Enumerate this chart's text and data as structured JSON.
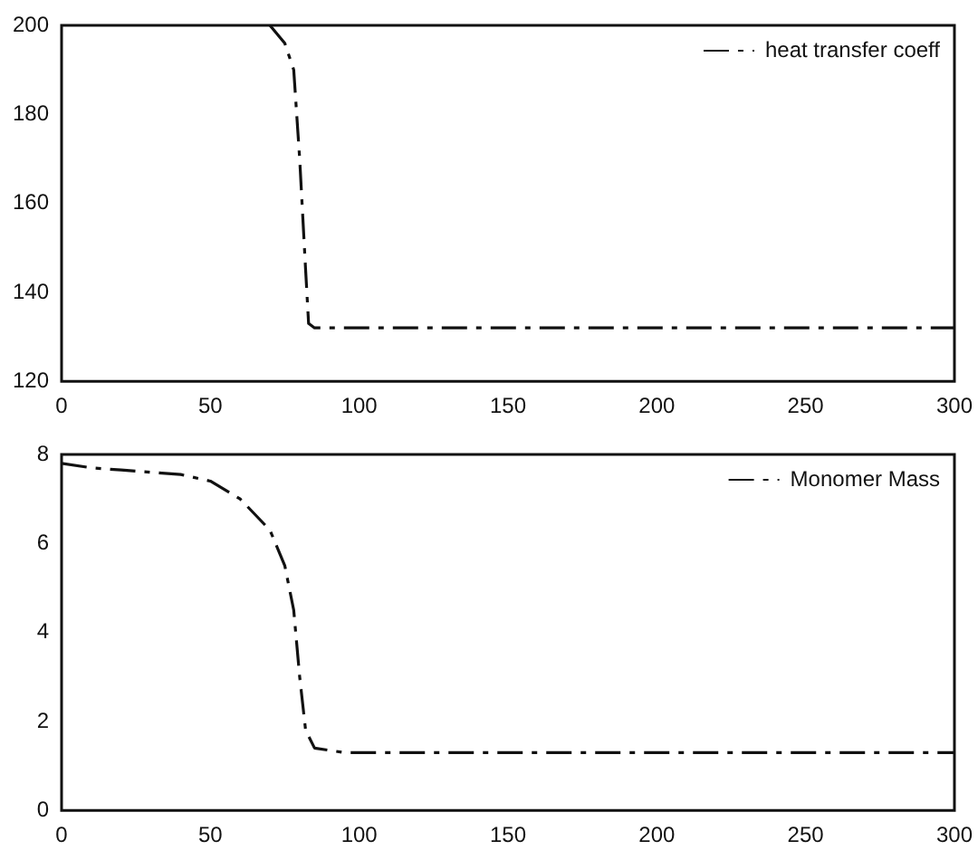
{
  "chart_data": [
    {
      "type": "line",
      "x": [
        70,
        75,
        78,
        80,
        82,
        83,
        85,
        100,
        150,
        200,
        250,
        300
      ],
      "series": [
        {
          "name": "heat transfer coeff",
          "color": "#111111",
          "values": [
            200,
            196,
            190,
            170,
            145,
            133,
            132,
            132,
            132,
            132,
            132,
            132
          ]
        }
      ],
      "xlim": [
        0,
        300
      ],
      "xticks": [
        0,
        50,
        100,
        150,
        200,
        250,
        300
      ],
      "ylim": [
        120,
        200
      ],
      "yticks": [
        120,
        140,
        160,
        180,
        200
      ],
      "grid": false,
      "legend": "top right",
      "marker": "none",
      "line_style": "dashed"
    },
    {
      "type": "line",
      "x": [
        0,
        10,
        20,
        30,
        40,
        50,
        60,
        70,
        75,
        78,
        80,
        82,
        85,
        95,
        150,
        200,
        250,
        300
      ],
      "series": [
        {
          "name": "Monomer Mass",
          "color": "#111111",
          "values": [
            7.8,
            7.7,
            7.65,
            7.6,
            7.55,
            7.4,
            7.0,
            6.3,
            5.5,
            4.5,
            3.0,
            1.8,
            1.4,
            1.3,
            1.3,
            1.3,
            1.3,
            1.3
          ]
        }
      ],
      "xlim": [
        0,
        300
      ],
      "xticks": [
        0,
        50,
        100,
        150,
        200,
        250,
        300
      ],
      "ylim": [
        0,
        8
      ],
      "yticks": [
        0,
        2,
        4,
        6,
        8
      ],
      "grid": false,
      "legend": "top right",
      "marker": "none",
      "line_style": "dashed"
    }
  ]
}
